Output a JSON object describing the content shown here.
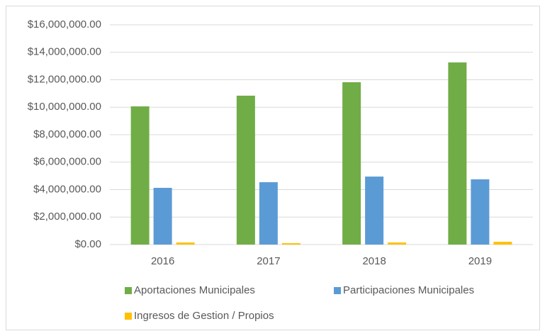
{
  "chart_data": {
    "type": "bar",
    "categories": [
      "2016",
      "2017",
      "2018",
      "2019"
    ],
    "series": [
      {
        "name": "Aportaciones Municipales",
        "color": "#70ad47",
        "values": [
          10060000,
          10840000,
          11820000,
          13260000
        ]
      },
      {
        "name": "Participaciones Municipales",
        "color": "#5b9bd5",
        "values": [
          4130000,
          4540000,
          4950000,
          4750000
        ]
      },
      {
        "name": "Ingresos de Gestion / Propios",
        "color": "#ffc000",
        "values": [
          150000,
          100000,
          150000,
          200000
        ]
      }
    ],
    "ylim": [
      0,
      16000000
    ],
    "yticks": [
      {
        "value": 0,
        "label": "$0.00"
      },
      {
        "value": 2000000,
        "label": "$2,000,000.00"
      },
      {
        "value": 4000000,
        "label": "$4,000,000.00"
      },
      {
        "value": 6000000,
        "label": "$6,000,000.00"
      },
      {
        "value": 8000000,
        "label": "$8,000,000.00"
      },
      {
        "value": 10000000,
        "label": "$10,000,000.00"
      },
      {
        "value": 12000000,
        "label": "$12,000,000.00"
      },
      {
        "value": 14000000,
        "label": "$14,000,000.00"
      },
      {
        "value": 16000000,
        "label": "$16,000,000.00"
      }
    ],
    "grid": true,
    "legend": "bottom"
  }
}
